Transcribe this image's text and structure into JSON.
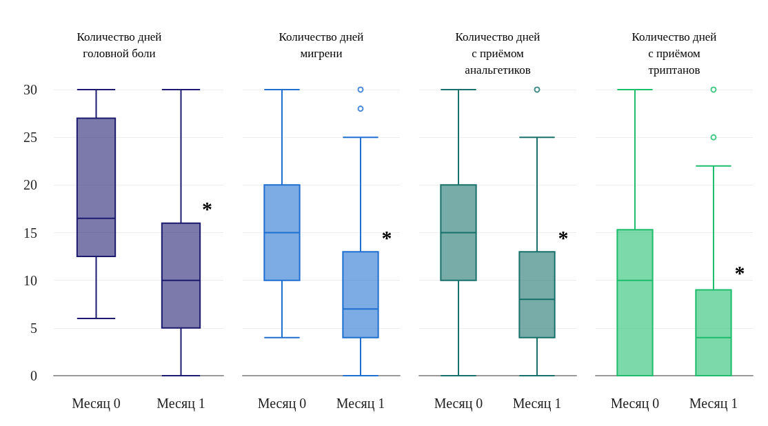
{
  "chart_data": [
    {
      "type": "box",
      "title": "Количество дней\nголовной боли",
      "categories": [
        "Месяц 0",
        "Месяц 1"
      ],
      "ylim": [
        0,
        30
      ],
      "yticks": [
        0,
        5,
        10,
        15,
        20,
        25,
        30
      ],
      "grid": "y",
      "series": [
        {
          "color": "#1c1a6e",
          "boxes": [
            {
              "low": 6,
              "q1": 12.5,
              "median": 16.5,
              "q3": 27,
              "high": 30
            },
            {
              "low": 0,
              "q1": 5,
              "median": 10,
              "q3": 16,
              "high": 30
            }
          ]
        }
      ],
      "annotations": [
        {
          "text": "*",
          "x": "Месяц 1",
          "y": 17.5
        }
      ]
    },
    {
      "type": "box",
      "title": "Количество дней\nмигрени",
      "categories": [
        "Месяц 0",
        "Месяц 1"
      ],
      "ylim": [
        0,
        30
      ],
      "yticks": [
        0,
        5,
        10,
        15,
        20,
        25,
        30
      ],
      "grid": "y",
      "tick_labels": "x",
      "series": [
        {
          "color": "#1f6fd1",
          "boxes": [
            {
              "low": 4,
              "q1": 10,
              "median": 15,
              "q3": 20,
              "high": 30
            },
            {
              "low": 0,
              "q1": 4,
              "median": 7,
              "q3": 13,
              "high": 25,
              "outliers": [
                28,
                30
              ]
            }
          ]
        }
      ],
      "annotations": [
        {
          "text": "*",
          "x": "Месяц 1",
          "y": 14.5
        }
      ]
    },
    {
      "type": "box",
      "title": "Количество дней\nс приёмом\nанальгетиков",
      "categories": [
        "Месяц 0",
        "Месяц 1"
      ],
      "ylim": [
        0,
        30
      ],
      "yticks": [
        0,
        5,
        10,
        15,
        20,
        25,
        30
      ],
      "grid": "y",
      "tick_labels": "x",
      "series": [
        {
          "color": "#17706a",
          "boxes": [
            {
              "low": 0,
              "q1": 10,
              "median": 15,
              "q3": 20,
              "high": 30
            },
            {
              "low": 0,
              "q1": 4,
              "median": 8,
              "q3": 13,
              "high": 25,
              "outliers": [
                30
              ]
            }
          ]
        }
      ],
      "annotations": [
        {
          "text": "*",
          "x": "Месяц 1",
          "y": 14.5
        }
      ]
    },
    {
      "type": "box",
      "title": "Количество дней\nс приёмом\nтриптанов",
      "categories": [
        "Месяц 0",
        "Месяц 1"
      ],
      "ylim": [
        0,
        30
      ],
      "yticks": [
        0,
        5,
        10,
        15,
        20,
        25,
        30
      ],
      "grid": "y",
      "tick_labels": "x",
      "series": [
        {
          "color": "#1dbd6c",
          "boxes": [
            {
              "low": 0,
              "q1": 0,
              "median": 10,
              "q3": 15.3,
              "high": 30
            },
            {
              "low": 0,
              "q1": 0,
              "median": 4,
              "q3": 9,
              "high": 22,
              "outliers": [
                25,
                30
              ]
            }
          ]
        }
      ],
      "annotations": [
        {
          "text": "*",
          "x": "Месяц 1",
          "y": 10.8
        }
      ]
    }
  ]
}
